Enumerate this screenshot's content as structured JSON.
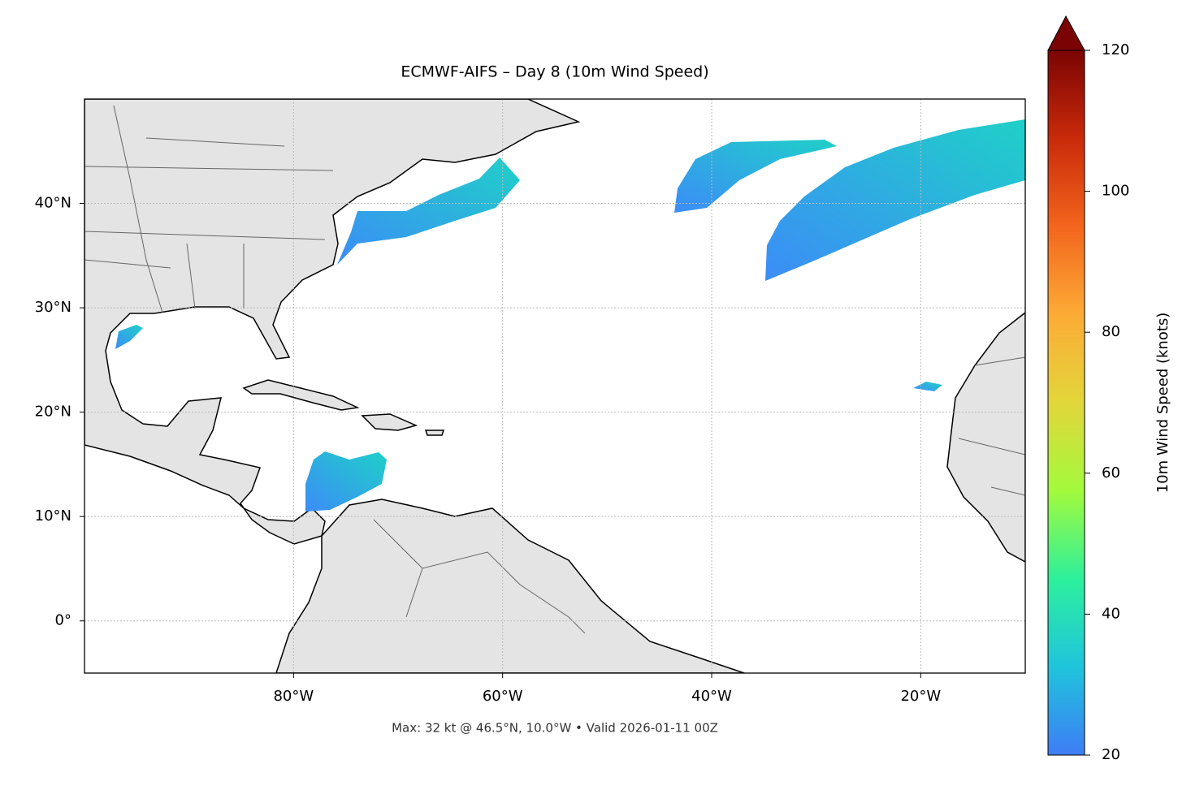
{
  "title": "ECMWF-AIFS – Day 8 (10m Wind Speed)",
  "map": {
    "lon_range": [
      -100,
      -10
    ],
    "lat_range": [
      -5,
      50
    ],
    "xticks": [
      {
        "value": -80,
        "label": "80°W"
      },
      {
        "value": -60,
        "label": "60°W"
      },
      {
        "value": -40,
        "label": "40°W"
      },
      {
        "value": -20,
        "label": "20°W"
      }
    ],
    "yticks": [
      {
        "value": 0,
        "label": "0°"
      },
      {
        "value": 10,
        "label": "10°N"
      },
      {
        "value": 20,
        "label": "20°N"
      },
      {
        "value": 30,
        "label": "30°N"
      },
      {
        "value": 40,
        "label": "40°N"
      }
    ],
    "grid": true
  },
  "colorbar": {
    "label": "10m Wind Speed (knots)",
    "range": [
      20,
      120
    ],
    "ticks": [
      20,
      40,
      60,
      80,
      100,
      120
    ],
    "colors": [
      "#3e7df5",
      "#1fc4dc",
      "#2df09c",
      "#a3fa3c",
      "#e2d63a",
      "#fcab36",
      "#f3651d",
      "#c92a0a",
      "#7a0403"
    ]
  },
  "footnote": "Max: 32 kt @ 46.5°N, 10.0°W • Valid 2026-01-11 00Z"
}
